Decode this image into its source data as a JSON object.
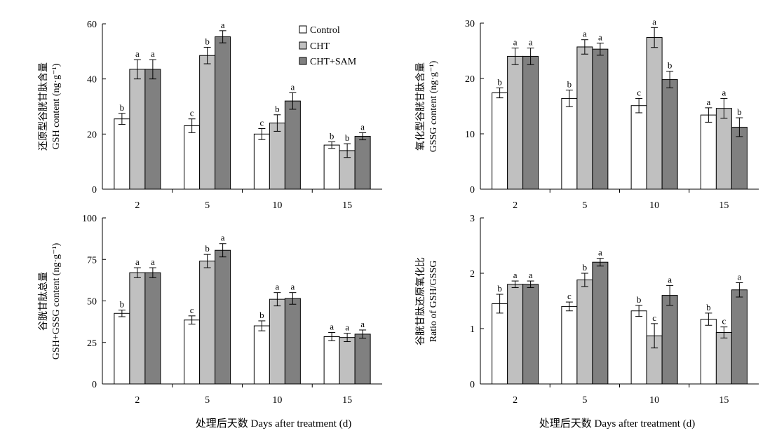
{
  "legend": [
    "Control",
    "CHT",
    "CHT+SAM"
  ],
  "colors": {
    "Control": "#ffffff",
    "CHT": "#c0c0c0",
    "CHT+SAM": "#808080",
    "axis": "#000000"
  },
  "x_axis_label": "处理后天数 Days after treatment (d)",
  "chart_data": [
    {
      "type": "bar",
      "panel": "top-left",
      "categories": [
        "2",
        "5",
        "10",
        "15"
      ],
      "ylabel_cn": "还原型谷胱甘肽含量",
      "ylabel_en": "GSH content (ng·g⁻¹)",
      "ylim": [
        0,
        60
      ],
      "yticks": [
        0,
        20,
        40,
        60
      ],
      "legend_position": "top-center",
      "series": [
        {
          "name": "Control",
          "values": [
            25.5,
            23,
            20,
            16
          ],
          "errors": [
            2,
            2.5,
            2,
            1.2
          ],
          "letters": [
            "b",
            "c",
            "c",
            "b"
          ]
        },
        {
          "name": "CHT",
          "values": [
            43.5,
            48.5,
            24,
            14
          ],
          "errors": [
            3.5,
            3,
            3,
            2.5
          ],
          "letters": [
            "a",
            "b",
            "b",
            "b"
          ]
        },
        {
          "name": "CHT+SAM",
          "values": [
            43.5,
            55.3,
            32,
            19.2
          ],
          "errors": [
            3.5,
            2.2,
            3,
            1.3
          ],
          "letters": [
            "a",
            "a",
            "a",
            "a"
          ]
        }
      ]
    },
    {
      "type": "bar",
      "panel": "top-right",
      "categories": [
        "2",
        "5",
        "10",
        "15"
      ],
      "ylabel_cn": "氧化型谷胱甘肽含量",
      "ylabel_en": "GSSG content (ng·g⁻¹)",
      "ylim": [
        0,
        30
      ],
      "yticks": [
        0,
        10,
        20,
        30
      ],
      "series": [
        {
          "name": "Control",
          "values": [
            17.4,
            16.4,
            15.1,
            13.4
          ],
          "errors": [
            0.9,
            1.5,
            1.3,
            1.3
          ],
          "letters": [
            "b",
            "b",
            "c",
            "a"
          ]
        },
        {
          "name": "CHT",
          "values": [
            24,
            25.7,
            27.4,
            14.6
          ],
          "errors": [
            1.5,
            1.3,
            1.8,
            1.8
          ],
          "letters": [
            "a",
            "a",
            "a",
            "a"
          ]
        },
        {
          "name": "CHT+SAM",
          "values": [
            24,
            25.3,
            19.8,
            11.2
          ],
          "errors": [
            1.5,
            1.1,
            1.5,
            1.7
          ],
          "letters": [
            "a",
            "a",
            "b",
            "b"
          ]
        }
      ]
    },
    {
      "type": "bar",
      "panel": "bottom-left",
      "categories": [
        "2",
        "5",
        "10",
        "15"
      ],
      "ylabel_cn": "谷胱甘肽总量",
      "ylabel_en": "GSH+GSSG content (ng·g⁻¹)",
      "ylim": [
        0,
        100
      ],
      "yticks": [
        0,
        25,
        50,
        75,
        100
      ],
      "series": [
        {
          "name": "Control",
          "values": [
            42.5,
            38.5,
            35,
            28.5
          ],
          "errors": [
            2,
            2.5,
            3,
            2.5
          ],
          "letters": [
            "b",
            "c",
            "b",
            "a"
          ]
        },
        {
          "name": "CHT",
          "values": [
            67,
            74,
            51,
            28
          ],
          "errors": [
            3,
            4,
            4,
            2.5
          ],
          "letters": [
            "a",
            "b",
            "a",
            "a"
          ]
        },
        {
          "name": "CHT+SAM",
          "values": [
            67,
            80.5,
            51.5,
            30
          ],
          "errors": [
            3,
            4,
            3.5,
            2.5
          ],
          "letters": [
            "a",
            "a",
            "a",
            "a"
          ]
        }
      ]
    },
    {
      "type": "bar",
      "panel": "bottom-right",
      "categories": [
        "2",
        "5",
        "10",
        "15"
      ],
      "ylabel_cn": "谷胱甘肽还原氧化比",
      "ylabel_en": "Ratio of GSH/GSSG",
      "ylim": [
        0,
        3
      ],
      "yticks": [
        0,
        1,
        2,
        3
      ],
      "series": [
        {
          "name": "Control",
          "values": [
            1.45,
            1.4,
            1.32,
            1.17
          ],
          "errors": [
            0.17,
            0.08,
            0.1,
            0.11
          ],
          "letters": [
            "b",
            "c",
            "b",
            "b"
          ]
        },
        {
          "name": "CHT",
          "values": [
            1.8,
            1.88,
            0.87,
            0.93
          ],
          "errors": [
            0.06,
            0.12,
            0.22,
            0.1
          ],
          "letters": [
            "a",
            "b",
            "c",
            "c"
          ]
        },
        {
          "name": "CHT+SAM",
          "values": [
            1.8,
            2.2,
            1.6,
            1.7
          ],
          "errors": [
            0.06,
            0.07,
            0.18,
            0.13
          ],
          "letters": [
            "a",
            "a",
            "a",
            "a"
          ]
        }
      ]
    }
  ]
}
